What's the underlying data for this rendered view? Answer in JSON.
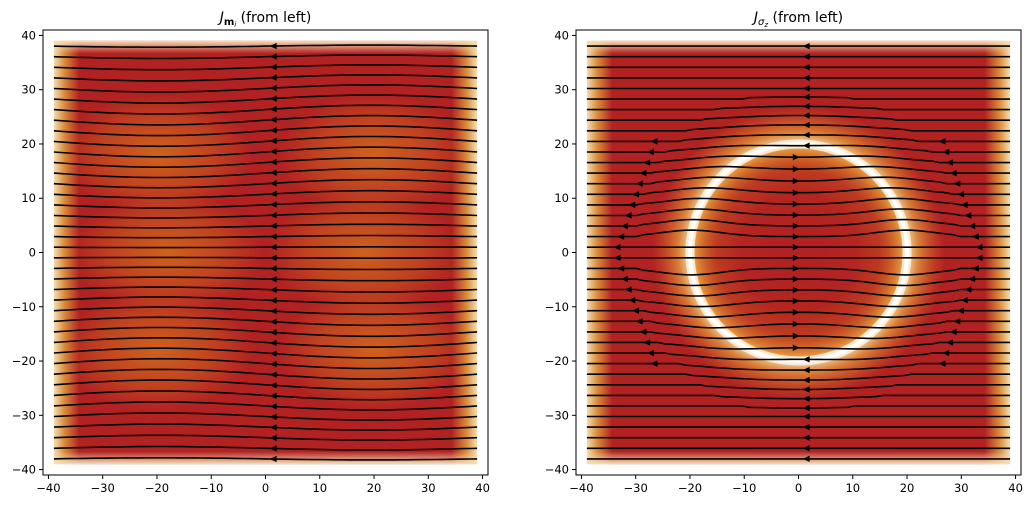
{
  "chart_data": [
    {
      "type": "streamplot",
      "title_main": "J",
      "title_sub": "m",
      "title_subsub": "i",
      "title_suffix": " (from left)",
      "xlim": [
        -41,
        41
      ],
      "ylim": [
        -41,
        41
      ],
      "xticks": [
        -40,
        -30,
        -20,
        -10,
        0,
        10,
        20,
        30,
        40
      ],
      "yticks": [
        -40,
        -30,
        -20,
        -10,
        0,
        10,
        20,
        30,
        40
      ],
      "tick_labels_x": [
        "−40",
        "−30",
        "−20",
        "−10",
        "0",
        "10",
        "20",
        "30",
        "40"
      ],
      "tick_labels_y": [
        "−40",
        "−30",
        "−20",
        "−10",
        "0",
        "10",
        "20",
        "30",
        "40"
      ],
      "field_extent": [
        -39,
        39
      ],
      "flow_direction": "right-to-left",
      "scatterer": null,
      "colors": {
        "high": "#b22222",
        "mid": "#d2691e",
        "edge": "#f5deb3",
        "line": "#000000"
      }
    },
    {
      "type": "streamplot",
      "title_main": "J",
      "title_sub": "σ",
      "title_subsub": "z",
      "title_suffix": " (from left)",
      "xlim": [
        -41,
        41
      ],
      "ylim": [
        -41,
        41
      ],
      "xticks": [
        -40,
        -30,
        -20,
        -10,
        0,
        10,
        20,
        30,
        40
      ],
      "yticks": [
        -40,
        -30,
        -20,
        -10,
        0,
        10,
        20,
        30,
        40
      ],
      "tick_labels_x": [
        "−40",
        "−30",
        "−20",
        "−10",
        "0",
        "10",
        "20",
        "30",
        "40"
      ],
      "tick_labels_y": [
        "−40",
        "−30",
        "−20",
        "−10",
        "0",
        "10",
        "20",
        "30",
        "40"
      ],
      "field_extent": [
        -39,
        39
      ],
      "flow_direction": "mixed",
      "scatterer": {
        "shape": "ring",
        "center": [
          0,
          0
        ],
        "radius": 20
      },
      "colors": {
        "high": "#b22222",
        "mid": "#d2691e",
        "edge": "#f5deb3",
        "ring": "#ffffff",
        "line": "#000000"
      }
    }
  ]
}
